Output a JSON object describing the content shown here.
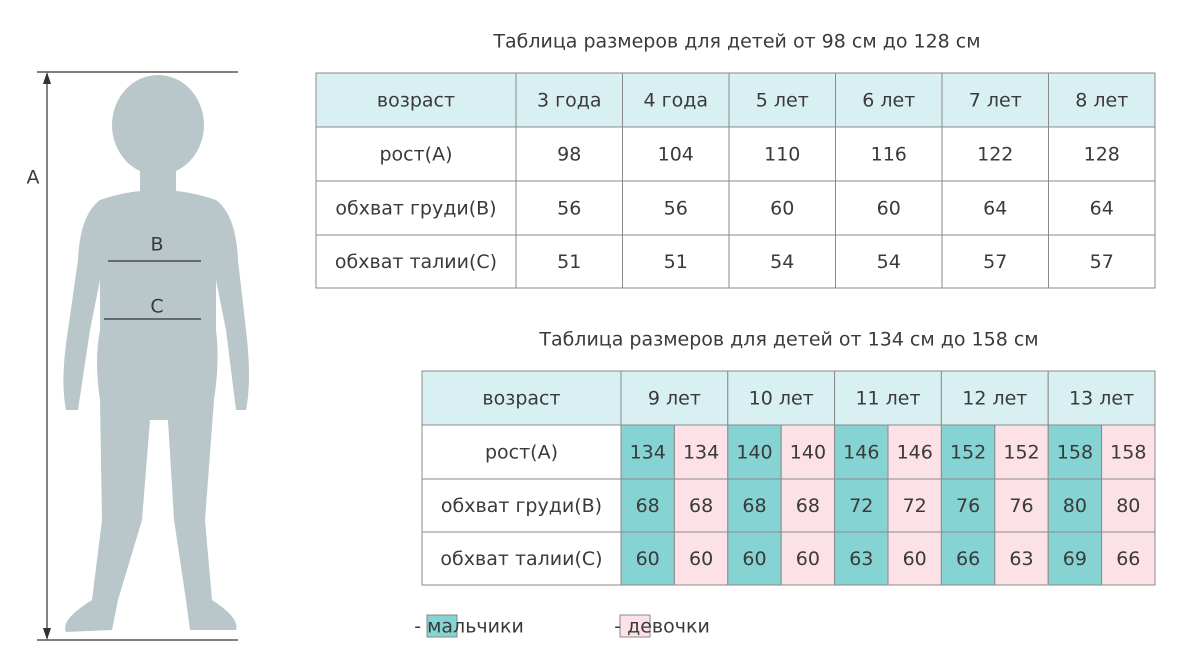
{
  "figure": {
    "labels": {
      "a": "A",
      "b": "B",
      "c": "C"
    }
  },
  "table1": {
    "title": "Таблица размеров для детей от 98 см до 128 см",
    "header": [
      "возраст",
      "3 года",
      "4 года",
      "5 лет",
      "6 лет",
      "7 лет",
      "8 лет"
    ],
    "rows": [
      [
        "рост(А)",
        98,
        104,
        110,
        116,
        122,
        128
      ],
      [
        "обхват груди(B)",
        56,
        56,
        60,
        60,
        64,
        64
      ],
      [
        "обхват талии(C)",
        51,
        51,
        54,
        54,
        57,
        57
      ]
    ]
  },
  "table2": {
    "title": "Таблица размеров для детей от 134 см до 158 см",
    "header": [
      "возраст",
      "9 лет",
      "10 лет",
      "11 лет",
      "12 лет",
      "13 лет"
    ],
    "rows": [
      {
        "label": "рост(А)",
        "boys": [
          134,
          140,
          146,
          152,
          158
        ],
        "girls": [
          134,
          140,
          146,
          152,
          158
        ]
      },
      {
        "label": "обхват груди(B)",
        "boys": [
          68,
          68,
          72,
          76,
          80
        ],
        "girls": [
          68,
          68,
          72,
          76,
          80
        ]
      },
      {
        "label": "обхват талии(C)",
        "boys": [
          60,
          60,
          63,
          66,
          69
        ],
        "girls": [
          60,
          60,
          60,
          63,
          66
        ]
      }
    ]
  },
  "legend": [
    {
      "label": "- мальчики",
      "color": "#86d3d4"
    },
    {
      "label": "- девочки",
      "color": "#fce1e6"
    }
  ]
}
